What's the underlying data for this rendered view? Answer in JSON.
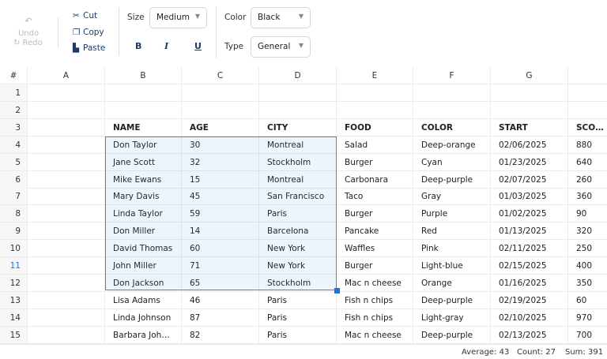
{
  "toolbar": {
    "undo": "Undo",
    "redo": "Redo",
    "cut": "Cut",
    "copy": "Copy",
    "paste": "Paste",
    "size_label": "Size",
    "size_value": "Medium",
    "color_label": "Color",
    "color_value": "Black",
    "type_label": "Type",
    "type_value": "General",
    "bold": "B",
    "italic": "I",
    "underline": "U"
  },
  "columns": [
    "#",
    "A",
    "B",
    "C",
    "D",
    "E",
    "F",
    "G",
    ""
  ],
  "rows": [
    [
      "1",
      "",
      "",
      "",
      "",
      "",
      "",
      "",
      ""
    ],
    [
      "2",
      "",
      "",
      "",
      "",
      "",
      "",
      "",
      ""
    ],
    [
      "3",
      "",
      "NAME",
      "AGE",
      "CITY",
      "FOOD",
      "COLOR",
      "START",
      "SCORE"
    ],
    [
      "4",
      "",
      "Don Taylor",
      "30",
      "Montreal",
      "Salad",
      "Deep-orange",
      "02/06/2025",
      "880"
    ],
    [
      "5",
      "",
      "Jane Scott",
      "32",
      "Stockholm",
      "Burger",
      "Cyan",
      "01/23/2025",
      "640"
    ],
    [
      "6",
      "",
      "Mike Ewans",
      "15",
      "Montreal",
      "Carbonara",
      "Deep-purple",
      "02/07/2025",
      "260"
    ],
    [
      "7",
      "",
      "Mary Davis",
      "45",
      "San Francisco",
      "Taco",
      "Gray",
      "01/03/2025",
      "360"
    ],
    [
      "8",
      "",
      "Linda Taylor",
      "59",
      "Paris",
      "Burger",
      "Purple",
      "01/02/2025",
      "90"
    ],
    [
      "9",
      "",
      "Don Miller",
      "14",
      "Barcelona",
      "Pancake",
      "Red",
      "01/13/2025",
      "320"
    ],
    [
      "10",
      "",
      "David Thomas",
      "60",
      "New York",
      "Waffles",
      "Pink",
      "02/11/2025",
      "250"
    ],
    [
      "11",
      "",
      "John Miller",
      "71",
      "New York",
      "Burger",
      "Light-blue",
      "02/15/2025",
      "400"
    ],
    [
      "12",
      "",
      "Don Jackson",
      "65",
      "Stockholm",
      "Mac n cheese",
      "Orange",
      "01/16/2025",
      "350"
    ],
    [
      "13",
      "",
      "Lisa Adams",
      "46",
      "Paris",
      "Fish n chips",
      "Deep-purple",
      "02/19/2025",
      "60"
    ],
    [
      "14",
      "",
      "Linda Johnson",
      "87",
      "Paris",
      "Fish n chips",
      "Light-gray",
      "02/10/2025",
      "970"
    ],
    [
      "15",
      "",
      "Barbara Johnson",
      "82",
      "Paris",
      "Mac n cheese",
      "Deep-purple",
      "02/13/2025",
      "700"
    ]
  ],
  "status": {
    "average": "Average: 43",
    "count": "Count: 27",
    "sum": "Sum: 391"
  },
  "colors": {
    "selection": "#3b8be0",
    "accent": "#1d3b66"
  }
}
